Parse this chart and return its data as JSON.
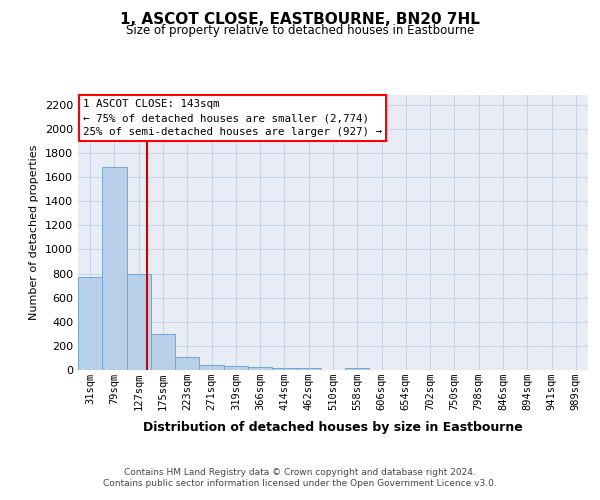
{
  "title": "1, ASCOT CLOSE, EASTBOURNE, BN20 7HL",
  "subtitle": "Size of property relative to detached houses in Eastbourne",
  "xlabel": "Distribution of detached houses by size in Eastbourne",
  "ylabel": "Number of detached properties",
  "footer1": "Contains HM Land Registry data © Crown copyright and database right 2024.",
  "footer2": "Contains public sector information licensed under the Open Government Licence v3.0.",
  "categories": [
    "31sqm",
    "79sqm",
    "127sqm",
    "175sqm",
    "223sqm",
    "271sqm",
    "319sqm",
    "366sqm",
    "414sqm",
    "462sqm",
    "510sqm",
    "558sqm",
    "606sqm",
    "654sqm",
    "702sqm",
    "750sqm",
    "798sqm",
    "846sqm",
    "894sqm",
    "941sqm",
    "989sqm"
  ],
  "values": [
    775,
    1680,
    800,
    300,
    110,
    40,
    30,
    25,
    20,
    20,
    0,
    20,
    0,
    0,
    0,
    0,
    0,
    0,
    0,
    0,
    0
  ],
  "bar_color": "#b8d0ea",
  "bar_edgecolor": "#6aaad4",
  "bar_linewidth": 0.7,
  "grid_color": "#c8d4e8",
  "bg_color": "#e8edf5",
  "annotation_line1": "1 ASCOT CLOSE: 143sqm",
  "annotation_line2": "← 75% of detached houses are smaller (2,774)",
  "annotation_line3": "25% of semi-detached houses are larger (927) →",
  "vline_color": "#cc0000",
  "ylim": [
    0,
    2280
  ],
  "yticks": [
    0,
    200,
    400,
    600,
    800,
    1000,
    1200,
    1400,
    1600,
    1800,
    2000,
    2200
  ],
  "title_fontsize": 11,
  "subtitle_fontsize": 8.5,
  "ylabel_fontsize": 8,
  "xlabel_fontsize": 9
}
